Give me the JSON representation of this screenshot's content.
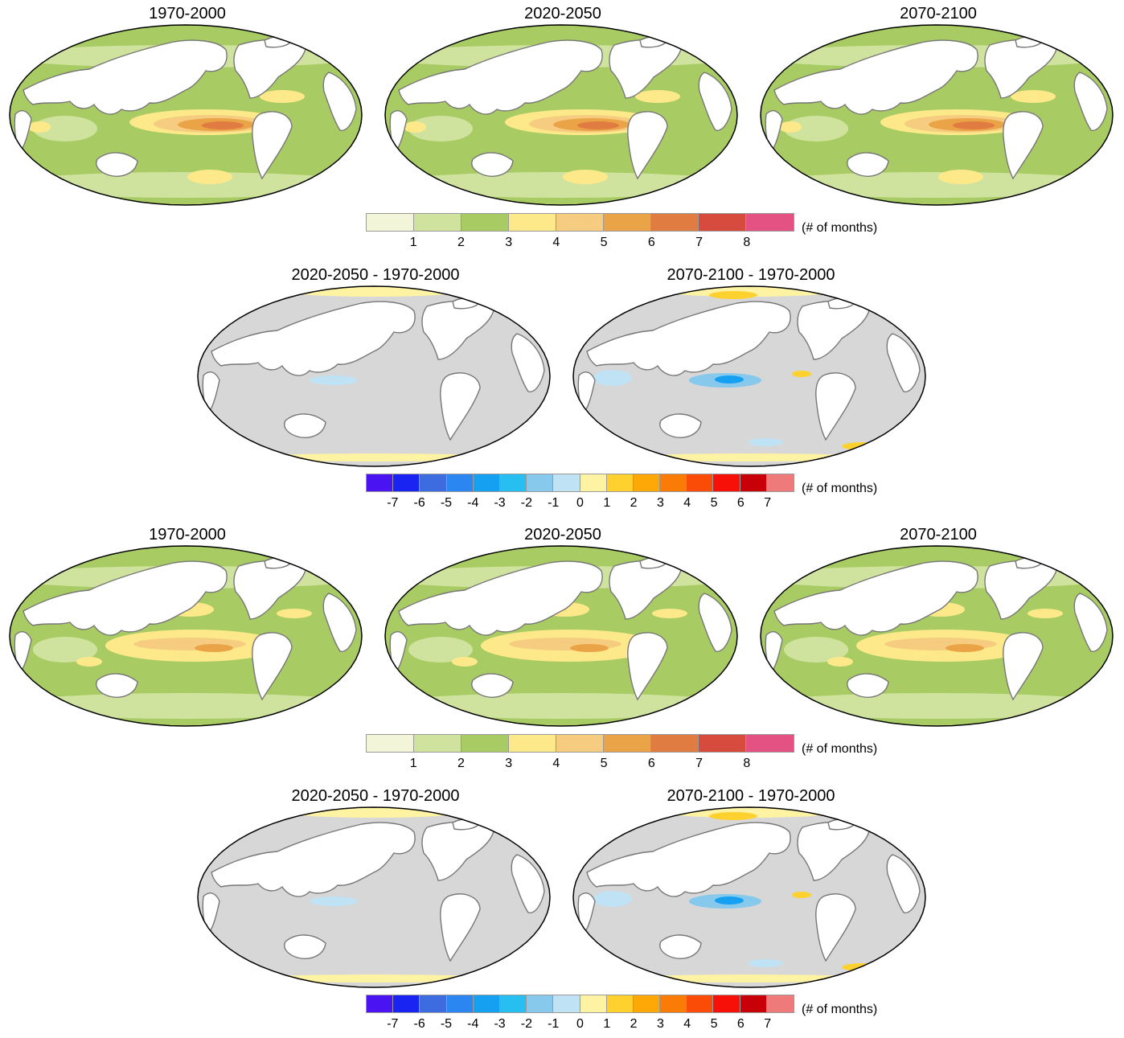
{
  "rows": [
    {
      "panels": [
        {
          "title": "1970-2000",
          "kind": "abs",
          "variant": "strong"
        },
        {
          "title": "2020-2050",
          "kind": "abs",
          "variant": "strong"
        },
        {
          "title": "2070-2100",
          "kind": "abs",
          "variant": "strong"
        }
      ]
    },
    {
      "panels": [
        {
          "title": "2020-2050 - 1970-2000",
          "kind": "diff",
          "variant": "weak"
        },
        {
          "title": "2070-2100 - 1970-2000",
          "kind": "diff",
          "variant": "strong"
        }
      ]
    },
    {
      "panels": [
        {
          "title": "1970-2000",
          "kind": "abs",
          "variant": "weak"
        },
        {
          "title": "2020-2050",
          "kind": "abs",
          "variant": "weak"
        },
        {
          "title": "2070-2100",
          "kind": "abs",
          "variant": "weak"
        }
      ]
    },
    {
      "panels": [
        {
          "title": "2020-2050 - 1970-2000",
          "kind": "diff",
          "variant": "weak"
        },
        {
          "title": "2070-2100 - 1970-2000",
          "kind": "diff",
          "variant": "strong"
        }
      ]
    }
  ],
  "colorbars": {
    "abs": {
      "colors": [
        "#f2f5d8",
        "#cfe39f",
        "#a8cc63",
        "#fde98a",
        "#f5cc80",
        "#eba347",
        "#e07c42",
        "#d64b3d",
        "#e45283"
      ],
      "ticks": [
        "1",
        "2",
        "3",
        "4",
        "5",
        "6",
        "7",
        "8"
      ],
      "unit": "(# of months)"
    },
    "diff": {
      "colors": [
        "#4a14f2",
        "#1a24f2",
        "#3d6be0",
        "#2c86f2",
        "#15a0f2",
        "#27bff2",
        "#86c9ec",
        "#bfe2f5",
        "#fdf3a3",
        "#fed12e",
        "#fda807",
        "#fa7c07",
        "#fb4c07",
        "#f71007",
        "#c80007",
        "#ee7a7a"
      ],
      "ticks": [
        "-7",
        "-6",
        "-5",
        "-4",
        "-3",
        "-2",
        "-1",
        "0",
        "1",
        "2",
        "3",
        "4",
        "5",
        "6",
        "7"
      ],
      "unit": "(# of months)"
    }
  },
  "palette": {
    "land": "#ffffff",
    "coast": "#777777",
    "no_change": "#d7d7d7"
  }
}
